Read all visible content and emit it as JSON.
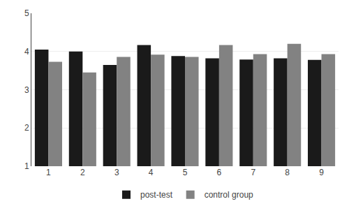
{
  "chart_data": {
    "type": "bar",
    "categories": [
      1,
      2,
      3,
      4,
      5,
      6,
      7,
      8,
      9
    ],
    "series": [
      {
        "name": "post-test",
        "color": "#1a1a1a",
        "values": [
          4.05,
          4.0,
          3.65,
          4.17,
          3.88,
          3.82,
          3.79,
          3.82,
          3.78
        ]
      },
      {
        "name": "control group",
        "color": "#828282",
        "values": [
          3.73,
          3.45,
          3.86,
          3.92,
          3.86,
          4.17,
          3.93,
          4.2,
          3.93
        ]
      }
    ],
    "ylim": [
      1,
      5
    ],
    "yticks": [
      1,
      2,
      3,
      4,
      5
    ],
    "grid": true,
    "legend": "bottom"
  }
}
